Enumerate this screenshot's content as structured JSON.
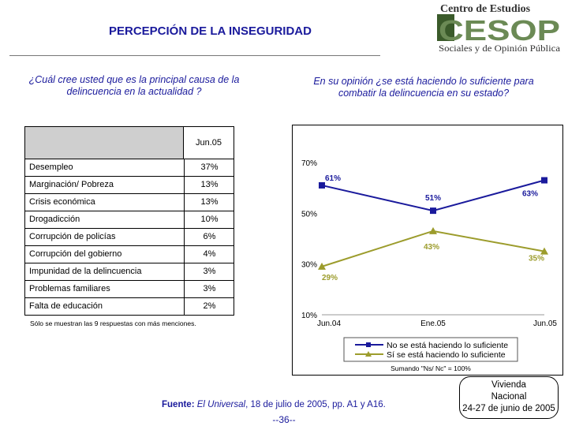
{
  "header": {
    "title": "PERCEPCIÓN DE LA INSEGURIDAD",
    "logo_top": "Centro de Estudios",
    "logo_mark": "CESOP",
    "logo_bottom": "Sociales y de Opinión Pública"
  },
  "left_panel": {
    "question": "¿Cuál cree usted que es la principal causa de la delincuencia en la actualidad ?",
    "column_header": "Jun.05",
    "rows": [
      {
        "label": "Desempleo",
        "value": "37%"
      },
      {
        "label": "Marginación/ Pobreza",
        "value": "13%"
      },
      {
        "label": "Crisis económica",
        "value": "13%"
      },
      {
        "label": "Drogadicción",
        "value": "10%"
      },
      {
        "label": "Corrupción de policías",
        "value": "6%"
      },
      {
        "label": "Corrupción del gobierno",
        "value": "4%"
      },
      {
        "label": "Impunidad de la delincuencia",
        "value": "3%"
      },
      {
        "label": "Problemas familiares",
        "value": "3%"
      },
      {
        "label": "Falta de educación",
        "value": "2%"
      }
    ],
    "note": "Sólo se muestran las 9 respuestas con más menciones."
  },
  "right_panel": {
    "question": "En su opinión ¿se está haciendo lo suficiente para combatir la delincuencia en su estado?"
  },
  "chart_data": {
    "type": "line",
    "title": "",
    "categories": [
      "Jun.04",
      "Ene.05",
      "Jun.05"
    ],
    "ylim": [
      10,
      70
    ],
    "yticks": [
      10,
      30,
      50,
      70
    ],
    "ytick_labels": [
      "10%",
      "30%",
      "50%",
      "70%"
    ],
    "series": [
      {
        "name": "No se está haciendo lo suficiente",
        "values": [
          61,
          51,
          63
        ],
        "labels": [
          "61%",
          "51%",
          "63%"
        ],
        "color": "#1a1a9c",
        "marker": "square"
      },
      {
        "name": "Sí se está haciendo lo suficiente",
        "values": [
          29,
          43,
          35
        ],
        "labels": [
          "29%",
          "43%",
          "35%"
        ],
        "color": "#9c9c2c",
        "marker": "triangle"
      }
    ],
    "legend_position": "bottom",
    "footnote": "Sumando \"Ns/ Nc\" = 100%"
  },
  "footer": {
    "source_label": "Fuente:",
    "source_italic": "El Universal",
    "source_rest": ", 18 de julio de 2005, pp. A1 y A16.",
    "page_number": "--36--",
    "method_line1": "Vivienda",
    "method_line2": "Nacional",
    "method_line3": "24-27 de junio de 2005"
  },
  "colors": {
    "title": "#1a1a9c",
    "series_no": "#1a1a9c",
    "series_si": "#9c9c2c"
  }
}
